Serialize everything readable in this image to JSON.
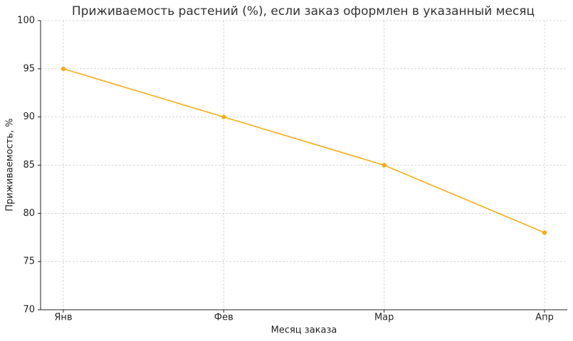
{
  "chart_data": {
    "type": "line",
    "title": "Приживаемость растений (%), если заказ оформлен в указанный месяц",
    "x_label": "Месяц заказа",
    "y_label": "Приживаемость, %",
    "categories": [
      "Янв",
      "Фев",
      "Мар",
      "Апр"
    ],
    "values": [
      95,
      90,
      85,
      78
    ],
    "color": "#f5ad14",
    "ylim": [
      70,
      100
    ],
    "yticks": [
      70,
      75,
      80,
      85,
      90,
      95,
      100
    ],
    "grid": true
  }
}
